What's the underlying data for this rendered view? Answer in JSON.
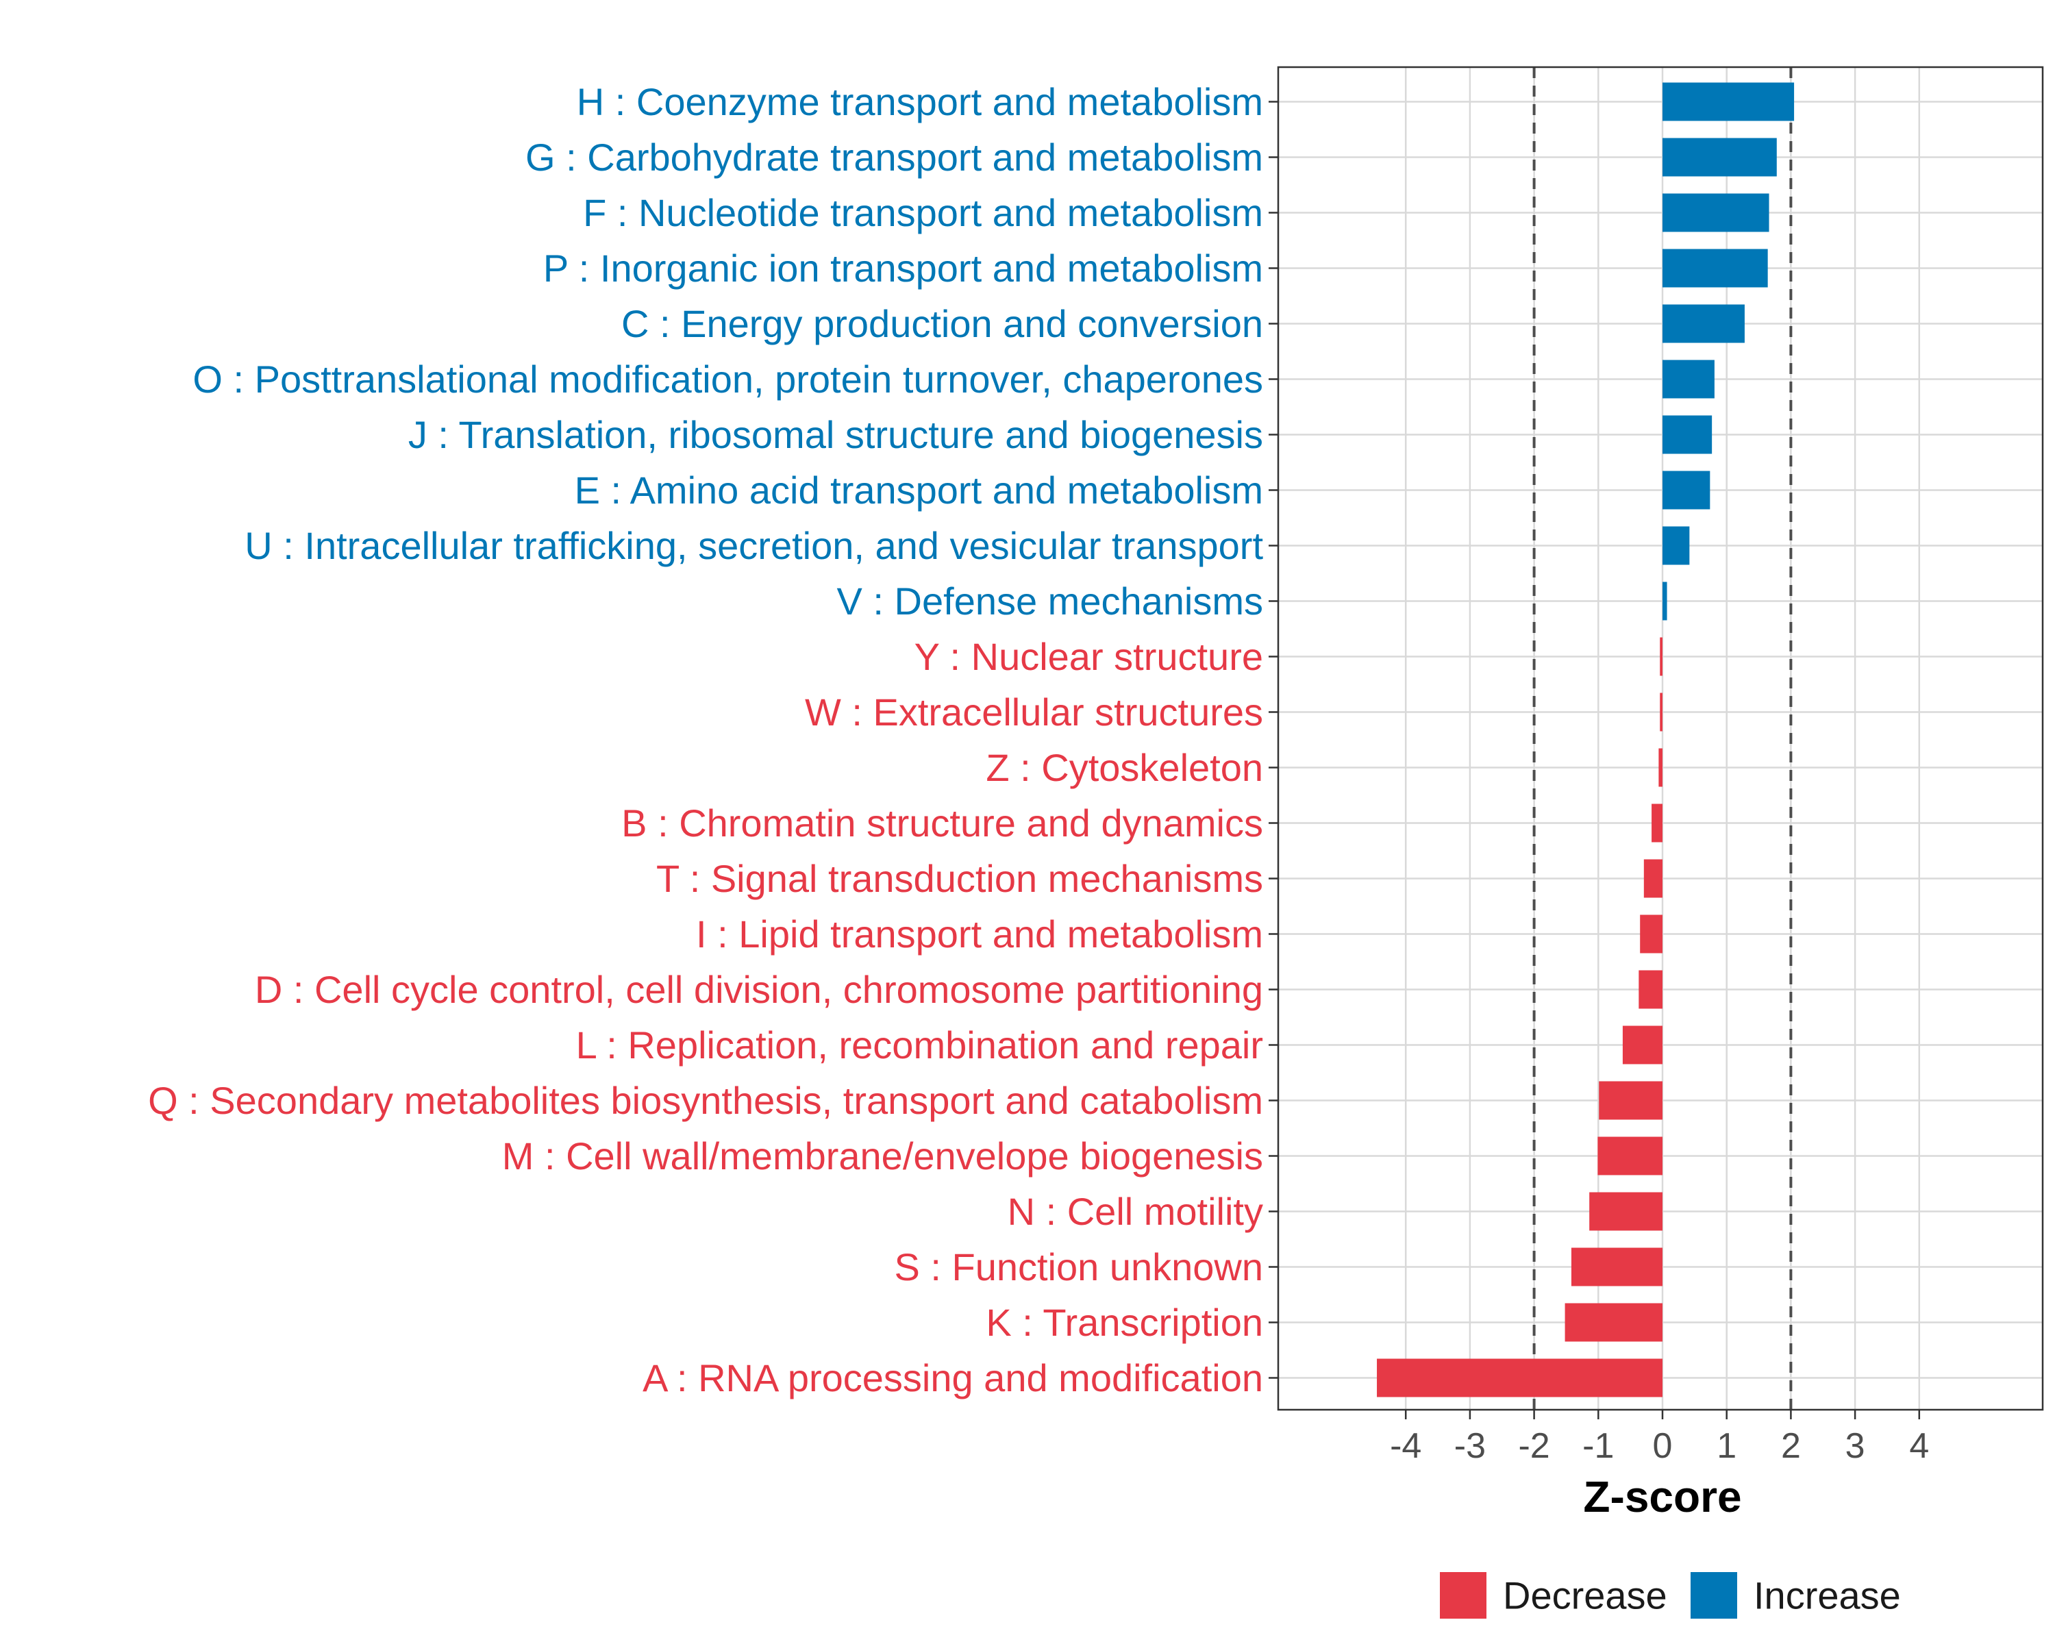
{
  "colors": {
    "increase": "#0077b6",
    "decrease": "#e63946",
    "grid": "#d9d9d9",
    "frame": "#333333",
    "threshold_line": "#4d4d4d"
  },
  "chart_data": {
    "type": "bar",
    "orientation": "horizontal",
    "xlabel": "Z-score",
    "xlim": [
      -6,
      6
    ],
    "xticks": [
      -4,
      -3,
      -2,
      -1,
      0,
      1,
      2,
      3,
      4
    ],
    "tick_labels": [
      "-4",
      "-3",
      "-2",
      "-1",
      "0",
      "1",
      "2",
      "3",
      "4"
    ],
    "threshold_lines": [
      -2,
      2
    ],
    "grid": true,
    "legend": {
      "position": "bottom",
      "entries": [
        {
          "label": "Decrease",
          "color_key": "decrease"
        },
        {
          "label": "Increase",
          "color_key": "increase"
        }
      ]
    },
    "categories": [
      {
        "label": "H : Coenzyme transport and metabolism",
        "value": 2.05,
        "direction": "increase"
      },
      {
        "label": "G : Carbohydrate transport and metabolism",
        "value": 1.78,
        "direction": "increase"
      },
      {
        "label": "F : Nucleotide transport and metabolism",
        "value": 1.66,
        "direction": "increase"
      },
      {
        "label": "P : Inorganic ion transport and metabolism",
        "value": 1.64,
        "direction": "increase"
      },
      {
        "label": "C : Energy production and conversion",
        "value": 1.28,
        "direction": "increase"
      },
      {
        "label": "O : Posttranslational modification, protein turnover, chaperones",
        "value": 0.81,
        "direction": "increase"
      },
      {
        "label": "J : Translation, ribosomal structure and biogenesis",
        "value": 0.77,
        "direction": "increase"
      },
      {
        "label": "E : Amino acid transport and metabolism",
        "value": 0.74,
        "direction": "increase"
      },
      {
        "label": "U : Intracellular trafficking, secretion, and vesicular transport",
        "value": 0.42,
        "direction": "increase"
      },
      {
        "label": "V : Defense mechanisms",
        "value": 0.07,
        "direction": "increase"
      },
      {
        "label": "Y : Nuclear structure",
        "value": -0.04,
        "direction": "decrease"
      },
      {
        "label": "W : Extracellular structures",
        "value": -0.04,
        "direction": "decrease"
      },
      {
        "label": "Z : Cytoskeleton",
        "value": -0.06,
        "direction": "decrease"
      },
      {
        "label": "B : Chromatin structure and dynamics",
        "value": -0.17,
        "direction": "decrease"
      },
      {
        "label": "T : Signal transduction mechanisms",
        "value": -0.29,
        "direction": "decrease"
      },
      {
        "label": "I : Lipid transport and metabolism",
        "value": -0.35,
        "direction": "decrease"
      },
      {
        "label": "D : Cell cycle control, cell division, chromosome partitioning",
        "value": -0.37,
        "direction": "decrease"
      },
      {
        "label": "L : Replication, recombination and repair",
        "value": -0.62,
        "direction": "decrease"
      },
      {
        "label": "Q : Secondary metabolites biosynthesis, transport and catabolism",
        "value": -0.99,
        "direction": "decrease"
      },
      {
        "label": "M : Cell wall/membrane/envelope biogenesis",
        "value": -1.01,
        "direction": "decrease"
      },
      {
        "label": "N : Cell motility",
        "value": -1.14,
        "direction": "decrease"
      },
      {
        "label": "S : Function unknown",
        "value": -1.42,
        "direction": "decrease"
      },
      {
        "label": "K : Transcription",
        "value": -1.52,
        "direction": "decrease"
      },
      {
        "label": "A : RNA processing and modification",
        "value": -4.45,
        "direction": "decrease"
      }
    ]
  }
}
